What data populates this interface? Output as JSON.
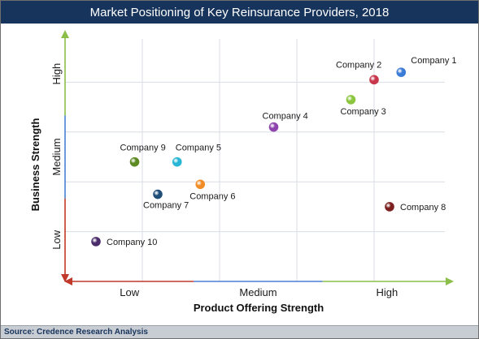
{
  "chart_data": {
    "type": "scatter",
    "title": "Market Positioning of Key Reinsurance Providers, 2018",
    "xlabel": "Product Offering Strength",
    "ylabel": "Business Strength",
    "x_tick_labels": [
      "Low",
      "Medium",
      "High"
    ],
    "y_tick_labels": [
      "Low",
      "Medium",
      "High"
    ],
    "xlim": [
      0,
      10
    ],
    "ylim": [
      0,
      10
    ],
    "grid": true,
    "points": [
      {
        "label": "Company 1",
        "x": 8.7,
        "y": 8.4,
        "color": "#3a7bd5",
        "label_pos": "upper-right"
      },
      {
        "label": "Company 2",
        "x": 8.0,
        "y": 8.1,
        "color": "#c7364a",
        "label_pos": "upper-left"
      },
      {
        "label": "Company 3",
        "x": 7.4,
        "y": 7.3,
        "color": "#8cc63f",
        "label_pos": "below-right"
      },
      {
        "label": "Company 4",
        "x": 5.4,
        "y": 6.2,
        "color": "#8e44ad",
        "label_pos": "upper-right"
      },
      {
        "label": "Company 5",
        "x": 2.9,
        "y": 4.8,
        "color": "#29b6d6",
        "label_pos": "upper-right"
      },
      {
        "label": "Company 6",
        "x": 3.5,
        "y": 3.9,
        "color": "#f28c28",
        "label_pos": "below-right"
      },
      {
        "label": "Company 7",
        "x": 2.4,
        "y": 3.5,
        "color": "#1f4e79",
        "label_pos": "below"
      },
      {
        "label": "Company 8",
        "x": 8.4,
        "y": 3.0,
        "color": "#7b1f1f",
        "label_pos": "right"
      },
      {
        "label": "Company 9",
        "x": 1.8,
        "y": 4.8,
        "color": "#5e8a23",
        "label_pos": "upper-left"
      },
      {
        "label": "Company 10",
        "x": 0.8,
        "y": 1.6,
        "color": "#4b2d6b",
        "label_pos": "right"
      }
    ]
  },
  "footer": {
    "source": "Source: Credence Research Analysis"
  },
  "colors": {
    "title_bar": "#17345c",
    "axis_low": "#c0392b",
    "axis_medium": "#4a7fd4",
    "axis_high": "#8cbf4a",
    "grid": "#d8dde6"
  }
}
